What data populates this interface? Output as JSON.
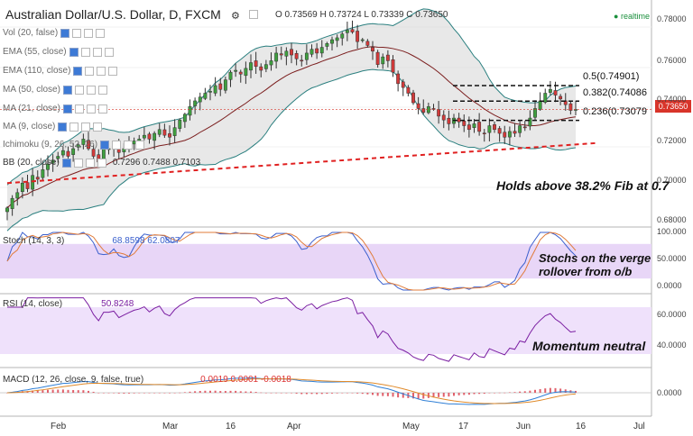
{
  "header": {
    "title": "Australian Dollar/U.S. Dollar, D, FXCM",
    "ohlc": "O 0.73569 H 0.73724 L 0.73339 C 0.73650",
    "realtime": "realtime",
    "price_tag": "0.73650"
  },
  "indicators": [
    {
      "label": "Vol (20, false)"
    },
    {
      "label": "EMA (55, close)"
    },
    {
      "label": "EMA (110, close)"
    },
    {
      "label": "MA (50, close)"
    },
    {
      "label": "MA (21, close)"
    },
    {
      "label": "MA (9, close)"
    },
    {
      "label": "Ichimoku (9, 26, 52, 26)"
    },
    {
      "label": "BB (20, close)",
      "values": "0.7296 0.7488 0.7103"
    }
  ],
  "annotations": {
    "fib_main": "Holds above 38.2% Fib at 0.7",
    "fib_levels": [
      "0.5(0.74901)",
      "0.382(0.74086",
      "0.236(0.73079"
    ],
    "stoch_note": "Stochs on the verge\nrollover from o/b",
    "rsi_note": "Momentum neutral"
  },
  "panels": {
    "stoch": {
      "label": "Stoch (14, 3, 3)",
      "values": "68.8598 62.0807"
    },
    "rsi": {
      "label": "RSI (14, close)",
      "value": "50.8248"
    },
    "macd": {
      "label": "MACD (12, 26, close, 9, false, true)",
      "values": "0.0019 0.0001 -0.0018"
    }
  },
  "chart_data": [
    {
      "type": "candlestick",
      "title": "Australian Dollar/U.S. Dollar, D, FXCM",
      "ylim": [
        0.675,
        0.79
      ],
      "y_ticks": [
        "0.78000",
        "0.76000",
        "0.74000",
        "0.72000",
        "0.70000",
        "0.68000"
      ],
      "x_ticks": [
        "Feb",
        "Mar",
        "16",
        "Apr",
        "May",
        "17",
        "Jun",
        "16",
        "Jul"
      ],
      "close": [
        0.685,
        0.69,
        0.693,
        0.698,
        0.695,
        0.702,
        0.7,
        0.705,
        0.708,
        0.71,
        0.712,
        0.715,
        0.712,
        0.716,
        0.718,
        0.721,
        0.716,
        0.712,
        0.709,
        0.716,
        0.716,
        0.717,
        0.714,
        0.716,
        0.718,
        0.72,
        0.721,
        0.723,
        0.721,
        0.724,
        0.726,
        0.723,
        0.722,
        0.727,
        0.731,
        0.734,
        0.738,
        0.741,
        0.743,
        0.745,
        0.746,
        0.749,
        0.747,
        0.752,
        0.756,
        0.757,
        0.755,
        0.758,
        0.761,
        0.759,
        0.757,
        0.76,
        0.762,
        0.766,
        0.765,
        0.767,
        0.765,
        0.763,
        0.762,
        0.766,
        0.768,
        0.766,
        0.769,
        0.771,
        0.773,
        0.774,
        0.776,
        0.778,
        0.777,
        0.772,
        0.773,
        0.77,
        0.767,
        0.76,
        0.764,
        0.762,
        0.756,
        0.75,
        0.748,
        0.745,
        0.74,
        0.737,
        0.735,
        0.738,
        0.737,
        0.733,
        0.731,
        0.729,
        0.732,
        0.73,
        0.728,
        0.726,
        0.729,
        0.725,
        0.724,
        0.728,
        0.726,
        0.724,
        0.722,
        0.725,
        0.724,
        0.728,
        0.727,
        0.732,
        0.737,
        0.741,
        0.745,
        0.747,
        0.744,
        0.742,
        0.739,
        0.736,
        0.7365
      ],
      "candle_start_date": "2016-01-20",
      "bollinger": {
        "period": 20,
        "last_middle": 0.7296,
        "last_upper": 0.7488,
        "last_lower": 0.7103
      },
      "sma_21_color": "#7b1e1e",
      "bb_fill": "#d9d9d9",
      "fib_levels": [
        {
          "label": "0.5",
          "value": 0.74901
        },
        {
          "label": "0.382",
          "value": 0.74086
        },
        {
          "label": "0.236",
          "value": 0.73079
        }
      ],
      "trendline": {
        "color": "#e02020",
        "style": "dashed",
        "from": [
          0,
          0.698
        ],
        "to": [
          114,
          0.718
        ]
      }
    },
    {
      "type": "line",
      "name": "stoch",
      "ylim": [
        0,
        100
      ],
      "y_ticks": [
        "100.000",
        "50.0000",
        "0.0000"
      ],
      "overbought": 80,
      "oversold": 20,
      "band_color": "#e8d6f7",
      "series": [
        {
          "name": "%K",
          "color": "#3a5fcd"
        },
        {
          "name": "%D",
          "color": "#e07b39"
        }
      ],
      "last": {
        "k": 68.8598,
        "d": 62.0807
      }
    },
    {
      "type": "line",
      "name": "rsi",
      "ylim": [
        20,
        80
      ],
      "y_ticks": [
        "60.0000",
        "40.0000"
      ],
      "band": [
        30,
        70
      ],
      "band_color": "#efe1fb",
      "series": [
        {
          "name": "RSI",
          "color": "#7b1fa2"
        }
      ],
      "last": 50.8248
    },
    {
      "type": "bar",
      "name": "macd",
      "y_ticks": [
        "0.0000"
      ],
      "series": [
        {
          "name": "MACD",
          "color": "#2f7fd6"
        },
        {
          "name": "Signal",
          "color": "#e08a2a"
        },
        {
          "name": "Histogram",
          "color": "#e0606b"
        }
      ],
      "last": {
        "hist": 0.0019,
        "macd": 0.0001,
        "signal": -0.0018
      }
    }
  ]
}
